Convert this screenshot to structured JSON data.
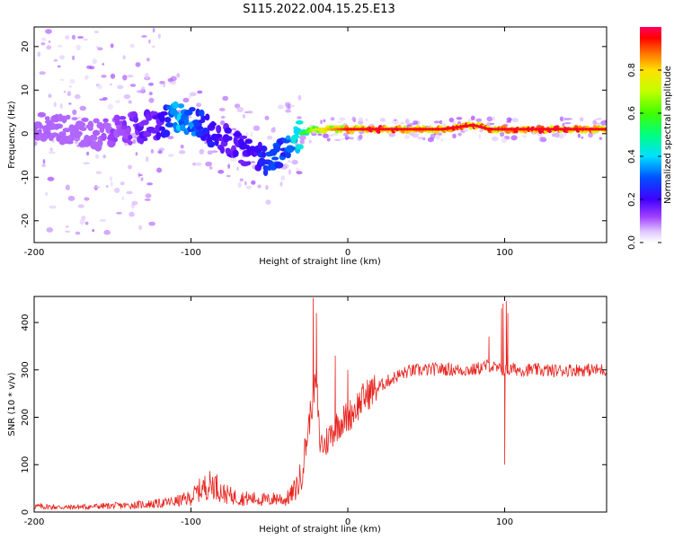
{
  "title": "S115.2022.004.15.25.E13",
  "colors": {
    "snr_line": "#e8231e",
    "spectrogram_low": "#a845ff",
    "spectrogram_high": "#ff0000"
  },
  "chart_data": [
    {
      "type": "heatmap",
      "xlabel": "Height of straight line (km)",
      "ylabel": "Frequency (Hz)",
      "xlim": [
        -200,
        165
      ],
      "ylim": [
        -25,
        24.5
      ],
      "xticks": [
        -200,
        -100,
        0,
        100
      ],
      "yticks": [
        -20,
        -10,
        0,
        10,
        20
      ],
      "colorbar": {
        "label": "Normalized spectral amplitude",
        "range": [
          0,
          1
        ],
        "ticks": [
          0.0,
          0.2,
          0.4,
          0.6,
          0.8
        ],
        "colormap": "rainbow (white/violet low, red high)"
      },
      "ridge": {
        "description": "dominant frequency track (Hz) vs height (km)",
        "x": [
          -200,
          -180,
          -160,
          -140,
          -120,
          -110,
          -100,
          -90,
          -80,
          -70,
          -60,
          -50,
          -40,
          -30,
          -20,
          -10,
          0,
          20,
          40,
          60,
          80,
          90,
          100,
          120,
          140,
          165
        ],
        "y": [
          2,
          1,
          0,
          1,
          2,
          4,
          3,
          1,
          -1,
          -3,
          -5,
          -6,
          -3,
          0,
          1,
          1,
          1,
          1,
          1,
          1,
          2,
          1,
          1,
          1,
          1,
          1
        ],
        "peak_amplitude": [
          0.1,
          0.1,
          0.1,
          0.15,
          0.2,
          0.4,
          0.35,
          0.25,
          0.2,
          0.2,
          0.2,
          0.3,
          0.3,
          0.5,
          0.7,
          0.8,
          0.9,
          0.95,
          0.9,
          0.9,
          0.95,
          0.9,
          0.95,
          0.95,
          0.95,
          0.9
        ]
      }
    },
    {
      "type": "line",
      "xlabel": "Height of straight line (km)",
      "ylabel": "SNR (10 * v/v)",
      "xlim": [
        -200,
        165
      ],
      "ylim": [
        0,
        455
      ],
      "xticks": [
        -200,
        -100,
        0,
        100
      ],
      "yticks": [
        0,
        100,
        200,
        300,
        400
      ],
      "series": [
        {
          "x": [
            -200,
            -180,
            -160,
            -140,
            -130,
            -120,
            -110,
            -100,
            -95,
            -90,
            -85,
            -80,
            -75,
            -70,
            -60,
            -50,
            -45,
            -40,
            -35,
            -30,
            -25,
            -22,
            -20,
            -18,
            -15,
            -10,
            -5,
            0,
            5,
            10,
            15,
            20,
            25,
            30,
            35,
            40,
            50,
            60,
            70,
            80,
            85,
            90,
            95,
            98,
            100,
            102,
            105,
            110,
            120,
            130,
            140,
            150,
            160,
            165
          ],
          "y": [
            12,
            10,
            12,
            14,
            16,
            18,
            22,
            30,
            45,
            55,
            60,
            40,
            35,
            30,
            28,
            25,
            30,
            25,
            40,
            70,
            180,
            250,
            280,
            150,
            140,
            170,
            190,
            200,
            220,
            240,
            255,
            265,
            275,
            285,
            292,
            298,
            300,
            302,
            300,
            300,
            305,
            310,
            302,
            300,
            300,
            298,
            302,
            300,
            300,
            298,
            300,
            300,
            300,
            300
          ]
        }
      ],
      "spikes": {
        "x": [
          -22,
          -20,
          -8,
          0,
          90,
          98,
          99,
          100,
          101,
          102
        ],
        "y": [
          452,
          420,
          330,
          300,
          370,
          430,
          440,
          100,
          445,
          420
        ]
      }
    }
  ]
}
